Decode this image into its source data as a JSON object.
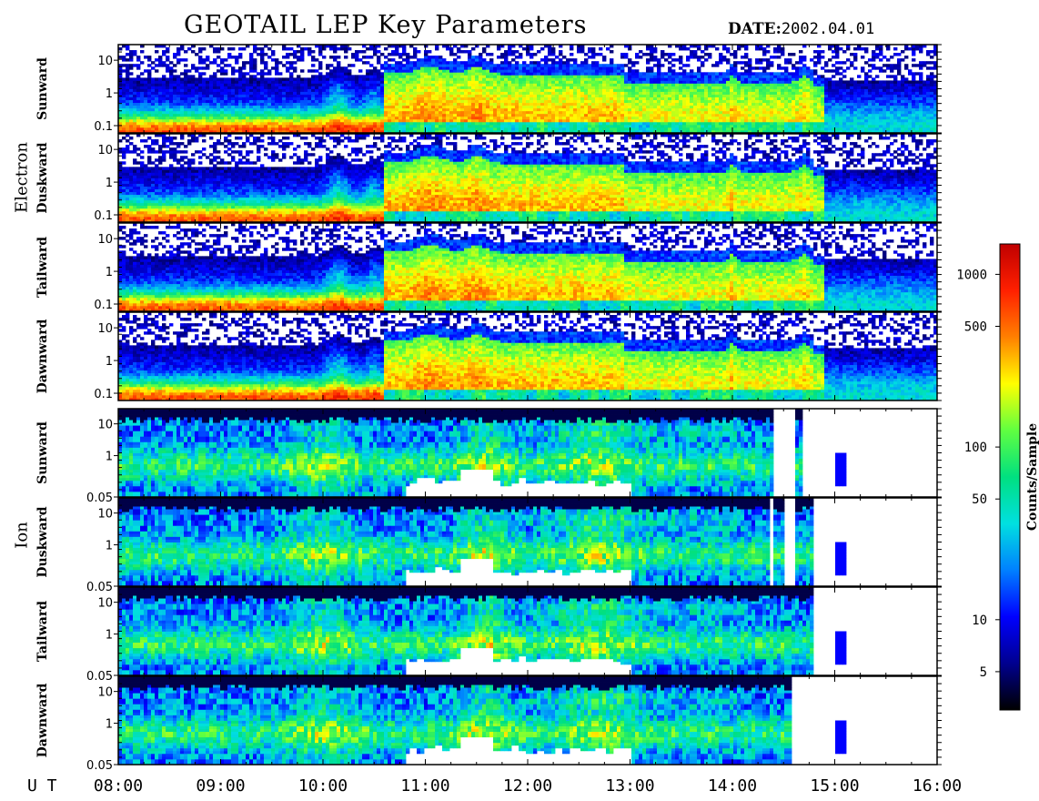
{
  "header": {
    "title": "GEOTAIL LEP Key Parameters",
    "date_label": "DATE:",
    "date_value": "2002.04.01"
  },
  "chart_data": {
    "type": "heatmap",
    "description_note": "",
    "x_axis": {
      "label": "U T",
      "ticks": [
        "08:00",
        "09:00",
        "10:00",
        "11:00",
        "12:00",
        "13:00",
        "14:00",
        "15:00",
        "16:00"
      ],
      "range_hours": [
        8,
        16
      ]
    },
    "groups": [
      {
        "name": "Electron",
        "y_scale": "log",
        "y_ticks": [
          "10",
          "1",
          "0.1"
        ],
        "y_range": [
          0.06,
          30
        ],
        "panels": [
          "Sunward",
          "Duskward",
          "Tailward",
          "Dawnward"
        ]
      },
      {
        "name": "Ion",
        "y_scale": "log",
        "y_ticks": [
          "10",
          "1",
          "0.05"
        ],
        "y_range": [
          0.05,
          30
        ],
        "panels": [
          "Sunward",
          "Duskward",
          "Tailward",
          "Dawnward"
        ]
      }
    ],
    "colorbar": {
      "label": "Counts/Sample",
      "scale": "log",
      "range": [
        3,
        1500
      ],
      "ticks": [
        "1000",
        "500",
        "100",
        "50",
        "10",
        "5"
      ],
      "colormap": [
        "#000000",
        "#00008f",
        "#0000ff",
        "#0080ff",
        "#00e0e0",
        "#00e080",
        "#60ff40",
        "#ffff00",
        "#ff8000",
        "#ff2000",
        "#c00000"
      ]
    },
    "ion_data_end_utc_hours": 15.1
  }
}
